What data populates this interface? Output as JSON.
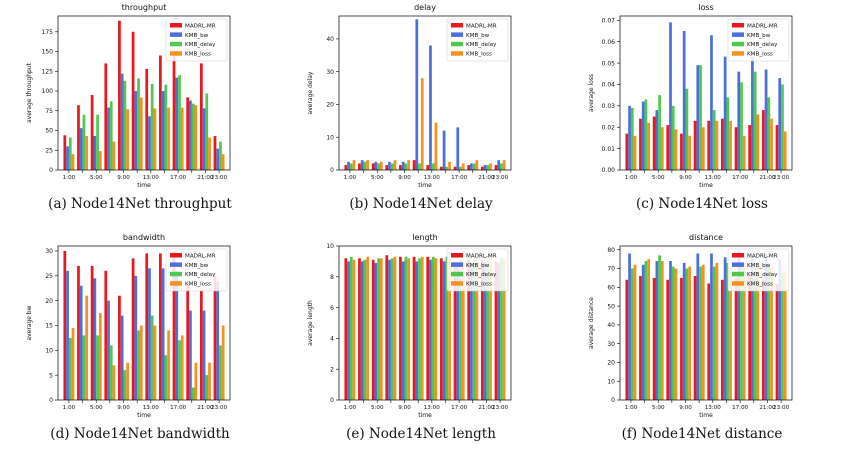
{
  "colors": {
    "MADRL-MR": "#e8181c",
    "KMB_bw": "#4d6fdc",
    "KMB_delay": "#4ec94e",
    "KMB_loss": "#f5921e"
  },
  "chart_data": [
    {
      "id": "a",
      "type": "bar",
      "title": "throughput",
      "caption": "(a)  Node14Net throughput",
      "xlabel": "time",
      "ylabel": "average throughput",
      "categories": [
        "1:00",
        "3:00",
        "5:00",
        "7:00",
        "9:00",
        "11:00",
        "13:00",
        "15:00",
        "17:00",
        "19:00",
        "21:00",
        "23:00"
      ],
      "ylim": [
        0,
        195
      ],
      "yticks": [
        0,
        25,
        50,
        75,
        100,
        125,
        150,
        175
      ],
      "ytick_labels": [
        "0",
        "25",
        "50",
        "75",
        "100",
        "125",
        "150",
        "175"
      ],
      "xtick_labels": [
        "1:00",
        "3:00",
        "5:00",
        "7:00",
        "9:00",
        "11:00",
        "13:00",
        "15:00",
        "17:00",
        "19:00",
        "21:00",
        "23:00"
      ],
      "series": [
        {
          "name": "MADRL-MR",
          "values": [
            44,
            82,
            95,
            135,
            189,
            175,
            128,
            145,
            145,
            92,
            135,
            43
          ]
        },
        {
          "name": "KMB_bw",
          "values": [
            30,
            53,
            43,
            79,
            122,
            100,
            68,
            100,
            117,
            88,
            78,
            27
          ]
        },
        {
          "name": "KMB_delay",
          "values": [
            41,
            70,
            70,
            87,
            113,
            116,
            109,
            108,
            120,
            84,
            97,
            36
          ]
        },
        {
          "name": "KMB_loss",
          "values": [
            20,
            43,
            24,
            36,
            77,
            92,
            78,
            79,
            79,
            82,
            41,
            20
          ]
        }
      ]
    },
    {
      "id": "b",
      "type": "bar",
      "title": "delay",
      "caption": "(b)  Node14Net delay",
      "xlabel": "time",
      "ylabel": "average delay",
      "categories": [
        "1:00",
        "3:00",
        "5:00",
        "7:00",
        "9:00",
        "11:00",
        "13:00",
        "15:00",
        "17:00",
        "19:00",
        "21:00",
        "23:00"
      ],
      "ylim": [
        0,
        47
      ],
      "yticks": [
        0,
        10,
        20,
        30,
        40
      ],
      "ytick_labels": [
        "0",
        "10",
        "20",
        "30",
        "40"
      ],
      "xtick_labels": [
        "1:00",
        "3:00",
        "5:00",
        "7:00",
        "9:00",
        "11:00",
        "13:00",
        "15:00",
        "17:00",
        "19:00",
        "21:00",
        "23:00"
      ],
      "series": [
        {
          "name": "MADRL-MR",
          "values": [
            1.5,
            2,
            2,
            1.5,
            1.5,
            3,
            1.5,
            1,
            1,
            1.5,
            1,
            1.5
          ]
        },
        {
          "name": "KMB_bw",
          "values": [
            2.5,
            3,
            2.5,
            2.5,
            2.5,
            46,
            38,
            12,
            13,
            2,
            1.5,
            3
          ]
        },
        {
          "name": "KMB_delay",
          "values": [
            2,
            2.5,
            2,
            2,
            2,
            2,
            2,
            1,
            1,
            2,
            1.5,
            2
          ]
        },
        {
          "name": "KMB_loss",
          "values": [
            3,
            3,
            2.5,
            3,
            3,
            28,
            14.5,
            2.5,
            2,
            3,
            2,
            3
          ]
        }
      ]
    },
    {
      "id": "c",
      "type": "bar",
      "title": "loss",
      "caption": "(c)  Node14Net loss",
      "xlabel": "time",
      "ylabel": "average loss",
      "categories": [
        "1:00",
        "3:00",
        "5:00",
        "7:00",
        "9:00",
        "11:00",
        "13:00",
        "15:00",
        "17:00",
        "19:00",
        "21:00",
        "23:00"
      ],
      "ylim": [
        0,
        0.072
      ],
      "yticks": [
        0,
        0.01,
        0.02,
        0.03,
        0.04,
        0.05,
        0.06,
        0.07
      ],
      "ytick_labels": [
        "0.00",
        "0.01",
        "0.02",
        "0.03",
        "0.04",
        "0.05",
        "0.06",
        "0.07"
      ],
      "xtick_labels": [
        "1:00",
        "3:00",
        "5:00",
        "7:00",
        "9:00",
        "11:00",
        "13:00",
        "15:00",
        "17:00",
        "19:00",
        "21:00",
        "23:00"
      ],
      "series": [
        {
          "name": "MADRL-MR",
          "values": [
            0.017,
            0.024,
            0.025,
            0.021,
            0.017,
            0.023,
            0.023,
            0.024,
            0.02,
            0.021,
            0.028,
            0.021
          ]
        },
        {
          "name": "KMB_bw",
          "values": [
            0.03,
            0.032,
            0.028,
            0.069,
            0.065,
            0.049,
            0.063,
            0.053,
            0.046,
            0.053,
            0.047,
            0.043
          ]
        },
        {
          "name": "KMB_delay",
          "values": [
            0.029,
            0.033,
            0.035,
            0.03,
            0.038,
            0.049,
            0.028,
            0.034,
            0.041,
            0.046,
            0.034,
            0.04
          ]
        },
        {
          "name": "KMB_loss",
          "values": [
            0.016,
            0.022,
            0.02,
            0.019,
            0.016,
            0.02,
            0.023,
            0.023,
            0.016,
            0.026,
            0.024,
            0.018
          ]
        }
      ]
    },
    {
      "id": "d",
      "type": "bar",
      "title": "bandwidth",
      "caption": "(d)  Node14Net bandwidth",
      "xlabel": "time",
      "ylabel": "average bw",
      "categories": [
        "1:00",
        "3:00",
        "5:00",
        "7:00",
        "9:00",
        "11:00",
        "13:00",
        "15:00",
        "17:00",
        "19:00",
        "21:00",
        "23:00"
      ],
      "ylim": [
        0,
        31
      ],
      "yticks": [
        0,
        5,
        10,
        15,
        20,
        25,
        30
      ],
      "ytick_labels": [
        "0",
        "5",
        "10",
        "15",
        "20",
        "25",
        "30"
      ],
      "xtick_labels": [
        "1:00",
        "3:00",
        "5:00",
        "7:00",
        "9:00",
        "11:00",
        "13:00",
        "15:00",
        "17:00",
        "19:00",
        "21:00",
        "23:00"
      ],
      "series": [
        {
          "name": "MADRL-MR",
          "values": [
            30,
            27,
            27,
            26,
            21,
            28.5,
            29.5,
            29.5,
            30,
            23,
            22,
            25
          ]
        },
        {
          "name": "KMB_bw",
          "values": [
            26,
            23,
            24.5,
            20,
            17,
            25,
            26.5,
            26.5,
            26,
            18,
            18,
            24
          ]
        },
        {
          "name": "KMB_delay",
          "values": [
            12.5,
            13,
            13,
            11,
            6,
            14,
            17,
            9,
            12,
            2.5,
            5,
            11
          ]
        },
        {
          "name": "KMB_loss",
          "values": [
            14.5,
            21,
            17.5,
            7,
            7.5,
            15,
            15,
            14,
            13,
            7.5,
            7.5,
            15
          ]
        }
      ]
    },
    {
      "id": "e",
      "type": "bar",
      "title": "length",
      "caption": "(e)  Node14Net length",
      "xlabel": "time",
      "ylabel": "average length",
      "categories": [
        "1:00",
        "3:00",
        "5:00",
        "7:00",
        "9:00",
        "11:00",
        "13:00",
        "15:00",
        "17:00",
        "19:00",
        "21:00",
        "23:00"
      ],
      "ylim": [
        0,
        10
      ],
      "yticks": [
        0,
        2,
        4,
        6,
        8,
        10
      ],
      "ytick_labels": [
        "0",
        "2",
        "4",
        "6",
        "8",
        "10"
      ],
      "xtick_labels": [
        "1:00",
        "3:00",
        "5:00",
        "7:00",
        "9:00",
        "11:00",
        "13:00",
        "15:00",
        "17:00",
        "19:00",
        "21:00",
        "23:00"
      ],
      "series": [
        {
          "name": "MADRL-MR",
          "values": [
            9.2,
            9.2,
            9.1,
            9.4,
            9.3,
            9.3,
            9.3,
            9.2,
            9.0,
            9.1,
            9.1,
            9.0
          ]
        },
        {
          "name": "KMB_bw",
          "values": [
            9.0,
            9.0,
            8.9,
            9.1,
            9.0,
            9.0,
            9.1,
            9.0,
            8.9,
            9.0,
            9.0,
            8.9
          ]
        },
        {
          "name": "KMB_delay",
          "values": [
            9.3,
            9.1,
            9.2,
            9.2,
            9.3,
            9.2,
            9.3,
            9.3,
            9.1,
            9.2,
            9.1,
            9.2
          ]
        },
        {
          "name": "KMB_loss",
          "values": [
            9.1,
            9.3,
            9.2,
            9.3,
            9.2,
            9.3,
            9.2,
            9.2,
            9.0,
            9.1,
            9.2,
            9.1
          ]
        }
      ]
    },
    {
      "id": "f",
      "type": "bar",
      "title": "distance",
      "caption": "(f)  Node14Net distance",
      "xlabel": "time",
      "ylabel": "average distance",
      "categories": [
        "1:00",
        "3:00",
        "5:00",
        "7:00",
        "9:00",
        "11:00",
        "13:00",
        "15:00",
        "17:00",
        "19:00",
        "21:00",
        "23:00"
      ],
      "ylim": [
        0,
        82
      ],
      "yticks": [
        0,
        10,
        20,
        30,
        40,
        50,
        60,
        70,
        80
      ],
      "ytick_labels": [
        "0",
        "10",
        "20",
        "30",
        "40",
        "50",
        "60",
        "70",
        "80"
      ],
      "xtick_labels": [
        "1:00",
        "3:00",
        "5:00",
        "7:00",
        "9:00",
        "11:00",
        "13:00",
        "15:00",
        "17:00",
        "19:00",
        "21:00",
        "23:00"
      ],
      "series": [
        {
          "name": "MADRL-MR",
          "values": [
            64,
            66,
            65,
            64,
            65,
            66,
            62,
            64,
            65,
            66,
            64,
            62
          ]
        },
        {
          "name": "KMB_bw",
          "values": [
            78,
            72,
            74,
            74,
            73,
            78,
            78,
            76,
            79,
            76,
            78,
            75
          ]
        },
        {
          "name": "KMB_delay",
          "values": [
            70,
            74,
            77,
            71,
            70,
            71,
            71,
            73,
            71,
            71,
            72,
            68
          ]
        },
        {
          "name": "KMB_loss",
          "values": [
            72,
            75,
            74,
            70,
            71,
            72,
            73,
            71,
            73,
            71,
            71,
            68
          ]
        }
      ]
    }
  ]
}
